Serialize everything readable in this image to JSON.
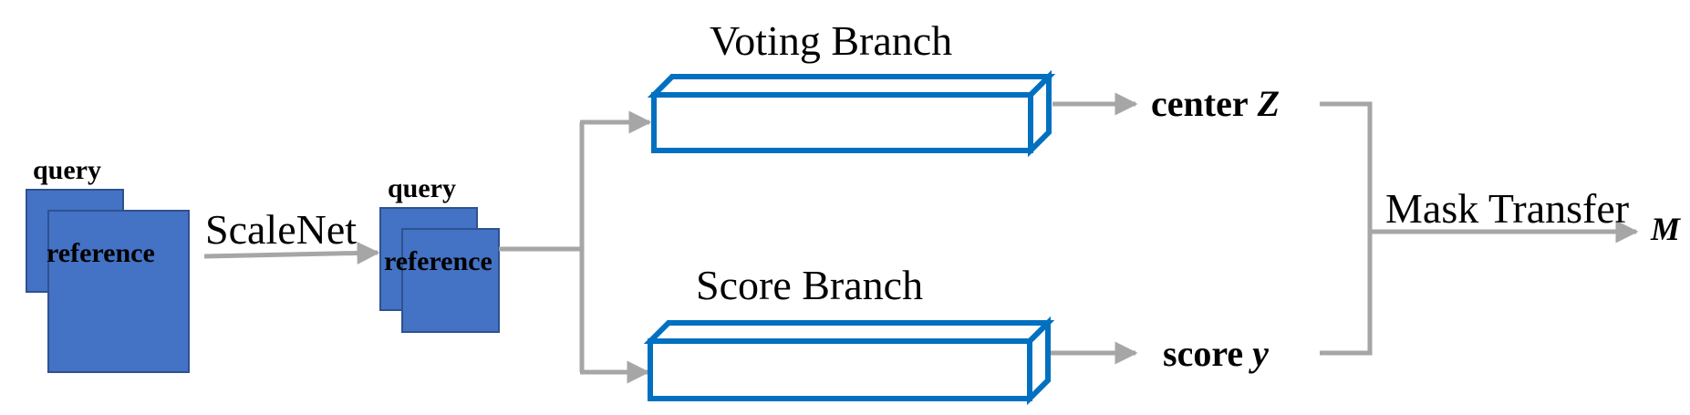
{
  "colors": {
    "card_fill": "#4472C4",
    "card_border": "#2F528F",
    "branch_stroke": "#0070C0",
    "arrow": "#A6A6A6"
  },
  "input_pair": {
    "query": "query",
    "reference": "reference"
  },
  "scalenet": {
    "label": "ScaleNet"
  },
  "scaled_pair": {
    "query": "query",
    "reference": "reference"
  },
  "voting_branch": {
    "title": "Voting Branch",
    "output_label": "center",
    "output_var": "Z"
  },
  "score_branch": {
    "title": "Score Branch",
    "output_label": "score",
    "output_var": "y"
  },
  "mask_transfer": {
    "label": "Mask Transfer",
    "output_var": "M"
  }
}
